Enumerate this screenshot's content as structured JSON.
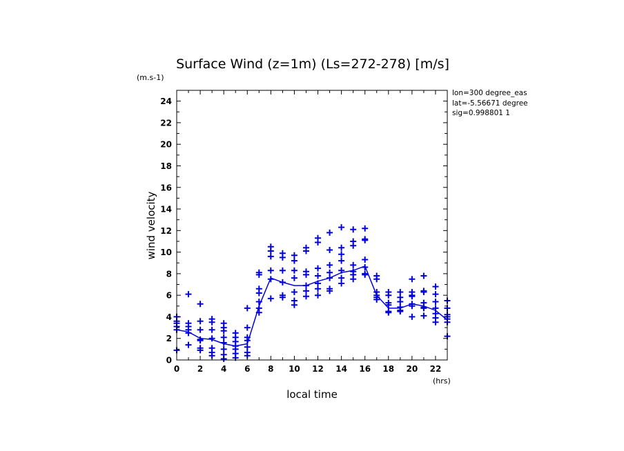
{
  "chart_data": {
    "type": "scatter",
    "title": "Surface Wind (z=1m) (Ls=272-278) [m/s]",
    "ylabel": "wind velocity",
    "yunit": "(m.s-1)",
    "xlabel": "local time",
    "xunit": "(hrs)",
    "xlim": [
      0,
      23
    ],
    "ylim": [
      0,
      25
    ],
    "xticks": [
      0,
      2,
      4,
      6,
      8,
      10,
      12,
      14,
      16,
      18,
      20,
      22
    ],
    "yticks": [
      0,
      2,
      4,
      6,
      8,
      10,
      12,
      14,
      16,
      18,
      20,
      22,
      24
    ],
    "info_lines": [
      "lon=300 degree_eas",
      "lat=-5.56671 degree",
      "sig=0.998801 1"
    ],
    "colors": {
      "series": "#0000dd",
      "axis": "#000000"
    },
    "series": [
      {
        "type": "line",
        "x": [
          0,
          1,
          2,
          3,
          4,
          5,
          6,
          7,
          8,
          9,
          10,
          11,
          12,
          13,
          14,
          15,
          16,
          17,
          18,
          19,
          20,
          21,
          22,
          23
        ],
        "y": [
          2.8,
          2.6,
          2.0,
          1.9,
          1.5,
          1.3,
          1.5,
          5.0,
          7.6,
          7.2,
          6.9,
          6.9,
          7.3,
          7.6,
          8.1,
          8.3,
          8.7,
          6.0,
          4.8,
          4.8,
          5.2,
          5.0,
          4.6,
          3.7
        ]
      },
      {
        "type": "scatter",
        "marker": "+",
        "points": [
          [
            0,
            4.0
          ],
          [
            0,
            3.6
          ],
          [
            0,
            3.4
          ],
          [
            0,
            3.1
          ],
          [
            0,
            2.8
          ],
          [
            0,
            0.9
          ],
          [
            1,
            6.1
          ],
          [
            1,
            3.4
          ],
          [
            1,
            3.1
          ],
          [
            1,
            2.8
          ],
          [
            1,
            2.5
          ],
          [
            1,
            1.4
          ],
          [
            2,
            5.2
          ],
          [
            2,
            3.6
          ],
          [
            2,
            2.8
          ],
          [
            2,
            1.9
          ],
          [
            2,
            1.8
          ],
          [
            2,
            1.1
          ],
          [
            2,
            0.9
          ],
          [
            3,
            3.8
          ],
          [
            3,
            3.5
          ],
          [
            3,
            2.8
          ],
          [
            3,
            2.0
          ],
          [
            3,
            1.1
          ],
          [
            3,
            0.7
          ],
          [
            3,
            0.4
          ],
          [
            4,
            3.4
          ],
          [
            4,
            3.0
          ],
          [
            4,
            2.7
          ],
          [
            4,
            2.1
          ],
          [
            4,
            1.6
          ],
          [
            4,
            1.0
          ],
          [
            4,
            0.5
          ],
          [
            4,
            0.1
          ],
          [
            5,
            2.5
          ],
          [
            5,
            2.1
          ],
          [
            5,
            1.7
          ],
          [
            5,
            1.3
          ],
          [
            5,
            1.0
          ],
          [
            5,
            0.6
          ],
          [
            5,
            0.2
          ],
          [
            6,
            4.8
          ],
          [
            6,
            3.0
          ],
          [
            6,
            2.1
          ],
          [
            6,
            1.8
          ],
          [
            6,
            1.2
          ],
          [
            6,
            0.7
          ],
          [
            6,
            0.4
          ],
          [
            7,
            8.1
          ],
          [
            7,
            7.9
          ],
          [
            7,
            6.6
          ],
          [
            7,
            6.2
          ],
          [
            7,
            5.4
          ],
          [
            7,
            4.8
          ],
          [
            7,
            4.4
          ],
          [
            8,
            10.5
          ],
          [
            8,
            10.1
          ],
          [
            8,
            9.6
          ],
          [
            8,
            8.3
          ],
          [
            8,
            7.5
          ],
          [
            8,
            5.7
          ],
          [
            9,
            9.9
          ],
          [
            9,
            9.5
          ],
          [
            9,
            8.3
          ],
          [
            9,
            7.2
          ],
          [
            9,
            6.0
          ],
          [
            9,
            5.8
          ],
          [
            10,
            9.7
          ],
          [
            10,
            9.2
          ],
          [
            10,
            8.3
          ],
          [
            10,
            7.6
          ],
          [
            10,
            6.3
          ],
          [
            10,
            5.5
          ],
          [
            10,
            5.1
          ],
          [
            11,
            10.4
          ],
          [
            11,
            10.1
          ],
          [
            11,
            8.2
          ],
          [
            11,
            7.9
          ],
          [
            11,
            6.9
          ],
          [
            11,
            6.4
          ],
          [
            11,
            5.9
          ],
          [
            12,
            11.3
          ],
          [
            12,
            10.9
          ],
          [
            12,
            8.5
          ],
          [
            12,
            7.8
          ],
          [
            12,
            7.1
          ],
          [
            12,
            6.6
          ],
          [
            12,
            6.0
          ],
          [
            13,
            11.8
          ],
          [
            13,
            10.2
          ],
          [
            13,
            8.8
          ],
          [
            13,
            8.1
          ],
          [
            13,
            7.6
          ],
          [
            13,
            6.6
          ],
          [
            13,
            6.4
          ],
          [
            14,
            12.3
          ],
          [
            14,
            10.4
          ],
          [
            14,
            9.8
          ],
          [
            14,
            9.2
          ],
          [
            14,
            8.3
          ],
          [
            14,
            7.6
          ],
          [
            14,
            7.1
          ],
          [
            15,
            12.1
          ],
          [
            15,
            11.0
          ],
          [
            15,
            10.6
          ],
          [
            15,
            8.8
          ],
          [
            15,
            8.2
          ],
          [
            15,
            7.9
          ],
          [
            15,
            7.5
          ],
          [
            16,
            12.2
          ],
          [
            16,
            11.2
          ],
          [
            16,
            11.1
          ],
          [
            16,
            9.3
          ],
          [
            16,
            8.6
          ],
          [
            16,
            8.0
          ],
          [
            16,
            7.9
          ],
          [
            17,
            7.8
          ],
          [
            17,
            7.5
          ],
          [
            17,
            6.3
          ],
          [
            17,
            6.0
          ],
          [
            17,
            5.8
          ],
          [
            17,
            5.6
          ],
          [
            18,
            6.3
          ],
          [
            18,
            6.0
          ],
          [
            18,
            5.3
          ],
          [
            18,
            5.1
          ],
          [
            18,
            4.5
          ],
          [
            18,
            4.4
          ],
          [
            19,
            6.3
          ],
          [
            19,
            5.8
          ],
          [
            19,
            5.4
          ],
          [
            19,
            4.9
          ],
          [
            19,
            4.6
          ],
          [
            19,
            4.5
          ],
          [
            20,
            7.5
          ],
          [
            20,
            6.3
          ],
          [
            20,
            6.0
          ],
          [
            20,
            5.9
          ],
          [
            20,
            5.2
          ],
          [
            20,
            5.0
          ],
          [
            20,
            4.0
          ],
          [
            21,
            7.8
          ],
          [
            21,
            6.4
          ],
          [
            21,
            6.3
          ],
          [
            21,
            5.3
          ],
          [
            21,
            4.9
          ],
          [
            21,
            4.8
          ],
          [
            21,
            4.1
          ],
          [
            22,
            6.8
          ],
          [
            22,
            6.1
          ],
          [
            22,
            5.4
          ],
          [
            22,
            4.8
          ],
          [
            22,
            4.3
          ],
          [
            22,
            3.9
          ],
          [
            22,
            3.5
          ],
          [
            23,
            5.5
          ],
          [
            23,
            4.8
          ],
          [
            23,
            4.2
          ],
          [
            23,
            4.0
          ],
          [
            23,
            3.8
          ],
          [
            23,
            3.5
          ],
          [
            23,
            2.2
          ]
        ]
      }
    ]
  }
}
